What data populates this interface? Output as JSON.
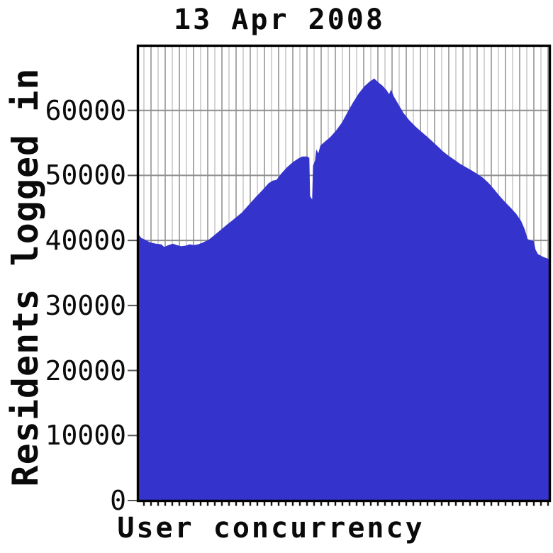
{
  "chart_data": {
    "type": "area",
    "title": "13 Apr 2008",
    "xlabel": "User concurrency",
    "ylabel": "Residents logged in",
    "ylim": [
      0,
      70000
    ],
    "yticks": [
      0,
      10000,
      20000,
      30000,
      40000,
      50000,
      60000
    ],
    "grid": "both",
    "legend": "none",
    "series": [
      {
        "name": "Residents logged in",
        "color": "#3433cc",
        "points": [
          [
            0.0,
            41000
          ],
          [
            0.007,
            40400
          ],
          [
            0.017,
            40100
          ],
          [
            0.029,
            39700
          ],
          [
            0.043,
            39500
          ],
          [
            0.056,
            39400
          ],
          [
            0.063,
            39000
          ],
          [
            0.074,
            39300
          ],
          [
            0.084,
            39500
          ],
          [
            0.094,
            39300
          ],
          [
            0.104,
            39100
          ],
          [
            0.115,
            39200
          ],
          [
            0.125,
            39400
          ],
          [
            0.135,
            39300
          ],
          [
            0.146,
            39400
          ],
          [
            0.158,
            39700
          ],
          [
            0.171,
            40100
          ],
          [
            0.183,
            40700
          ],
          [
            0.2,
            41600
          ],
          [
            0.217,
            42500
          ],
          [
            0.235,
            43400
          ],
          [
            0.252,
            44300
          ],
          [
            0.269,
            45500
          ],
          [
            0.286,
            46700
          ],
          [
            0.303,
            47800
          ],
          [
            0.317,
            48800
          ],
          [
            0.327,
            49200
          ],
          [
            0.336,
            49300
          ],
          [
            0.348,
            50300
          ],
          [
            0.361,
            51200
          ],
          [
            0.375,
            52000
          ],
          [
            0.389,
            52600
          ],
          [
            0.399,
            52900
          ],
          [
            0.411,
            52900
          ],
          [
            0.416,
            52700
          ],
          [
            0.418,
            46800
          ],
          [
            0.423,
            46300
          ],
          [
            0.425,
            51500
          ],
          [
            0.43,
            52300
          ],
          [
            0.433,
            54000
          ],
          [
            0.438,
            53400
          ],
          [
            0.443,
            54600
          ],
          [
            0.454,
            55200
          ],
          [
            0.467,
            55900
          ],
          [
            0.481,
            56900
          ],
          [
            0.495,
            58100
          ],
          [
            0.508,
            59600
          ],
          [
            0.522,
            61200
          ],
          [
            0.536,
            62600
          ],
          [
            0.55,
            63700
          ],
          [
            0.562,
            64400
          ],
          [
            0.574,
            64900
          ],
          [
            0.584,
            64300
          ],
          [
            0.594,
            63800
          ],
          [
            0.604,
            63100
          ],
          [
            0.61,
            62500
          ],
          [
            0.615,
            63200
          ],
          [
            0.621,
            62200
          ],
          [
            0.632,
            61000
          ],
          [
            0.645,
            59600
          ],
          [
            0.659,
            58500
          ],
          [
            0.673,
            57600
          ],
          [
            0.687,
            56800
          ],
          [
            0.7,
            56100
          ],
          [
            0.714,
            55300
          ],
          [
            0.728,
            54500
          ],
          [
            0.741,
            53700
          ],
          [
            0.755,
            53000
          ],
          [
            0.769,
            52400
          ],
          [
            0.782,
            51800
          ],
          [
            0.796,
            51300
          ],
          [
            0.81,
            50800
          ],
          [
            0.823,
            50300
          ],
          [
            0.837,
            49700
          ],
          [
            0.851,
            48900
          ],
          [
            0.865,
            47900
          ],
          [
            0.878,
            46900
          ],
          [
            0.892,
            45900
          ],
          [
            0.906,
            45000
          ],
          [
            0.919,
            44100
          ],
          [
            0.931,
            43000
          ],
          [
            0.94,
            41700
          ],
          [
            0.947,
            40200
          ],
          [
            0.955,
            40000
          ],
          [
            0.962,
            39900
          ],
          [
            0.966,
            38600
          ],
          [
            0.972,
            37900
          ],
          [
            0.984,
            37500
          ],
          [
            1.0,
            37100
          ]
        ]
      }
    ]
  },
  "colors": {
    "area_fill": "#3433cc",
    "grid_dark": "#949494",
    "grid_light": "#cacaca",
    "hgrid": "#8f8f8f",
    "axis_border": "#000000",
    "tick_mark": "#555555",
    "background": "#ffffff"
  }
}
